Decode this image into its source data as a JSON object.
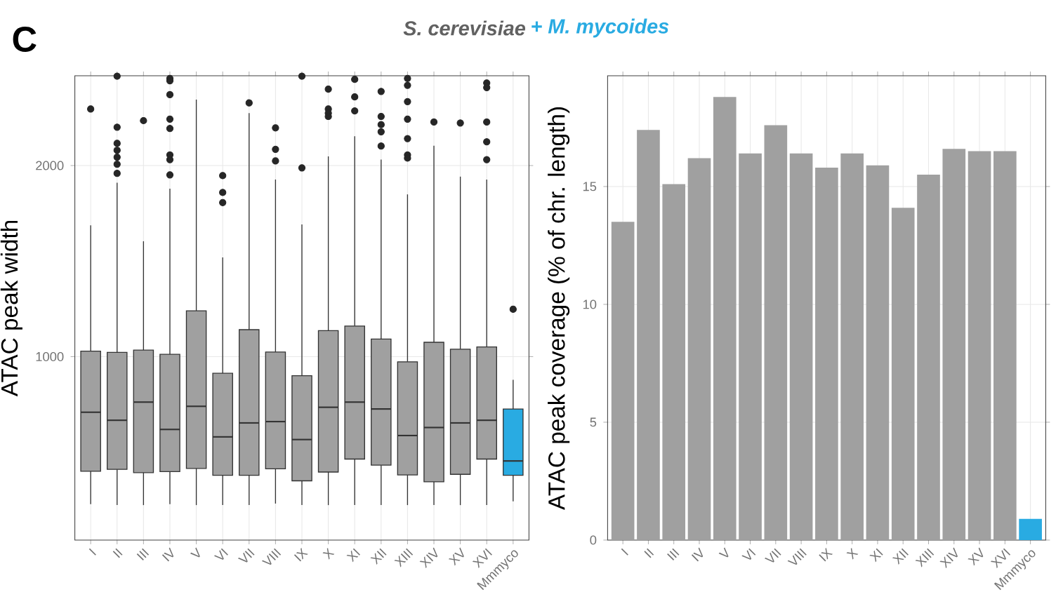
{
  "chart_data": [
    {
      "type": "box",
      "title": "S. cerevisiae",
      "ylabel": "ATAC peak width",
      "annotations": [
        "C"
      ],
      "categories": [
        "I",
        "II",
        "III",
        "IV",
        "V",
        "VI",
        "VII",
        "VIII",
        "IX",
        "X",
        "XI",
        "XII",
        "XIII",
        "XIV",
        "XV",
        "XVI",
        "Mmmyco"
      ],
      "colors": [
        "#a0a0a0",
        "#a0a0a0",
        "#a0a0a0",
        "#a0a0a0",
        "#a0a0a0",
        "#a0a0a0",
        "#a0a0a0",
        "#a0a0a0",
        "#a0a0a0",
        "#a0a0a0",
        "#a0a0a0",
        "#a0a0a0",
        "#a0a0a0",
        "#a0a0a0",
        "#a0a0a0",
        "#a0a0a0",
        "#29abe2"
      ],
      "boxes": [
        {
          "low": 228,
          "q1": 400,
          "median": 709,
          "q3": 1029,
          "high": 1687,
          "outliers": [
            2296
          ]
        },
        {
          "low": 223,
          "q1": 410,
          "median": 667,
          "q3": 1022,
          "high": 1910,
          "outliers": [
            2468,
            2201,
            2116,
            2080,
            2044,
            2007,
            1959
          ]
        },
        {
          "low": 223,
          "q1": 393,
          "median": 762,
          "q3": 1034,
          "high": 1604,
          "outliers": [
            2235
          ]
        },
        {
          "low": 228,
          "q1": 398,
          "median": 619,
          "q3": 1012,
          "high": 1879,
          "outliers": [
            2456,
            2444,
            2371,
            2243,
            2194,
            2056,
            2031,
            1951
          ]
        },
        {
          "low": 223,
          "q1": 415,
          "median": 740,
          "q3": 1240,
          "high": 2345
        },
        {
          "low": 223,
          "q1": 379,
          "median": 580,
          "q3": 913,
          "high": 1519,
          "outliers": [
            1947,
            1859,
            1806
          ]
        },
        {
          "low": 223,
          "q1": 379,
          "median": 653,
          "q3": 1141,
          "high": 2274,
          "outliers": [
            2328
          ]
        },
        {
          "low": 231,
          "q1": 413,
          "median": 660,
          "q3": 1024,
          "high": 1927,
          "outliers": [
            2197,
            2085,
            2024
          ]
        },
        {
          "low": 223,
          "q1": 350,
          "median": 566,
          "q3": 900,
          "high": 1692,
          "outliers": [
            2468,
            1988
          ]
        },
        {
          "low": 223,
          "q1": 396,
          "median": 735,
          "q3": 1136,
          "high": 2048,
          "outliers": [
            2400,
            2296,
            2274,
            2257
          ]
        },
        {
          "low": 223,
          "q1": 464,
          "median": 762,
          "q3": 1160,
          "high": 2153,
          "outliers": [
            2451,
            2359,
            2286
          ]
        },
        {
          "low": 223,
          "q1": 432,
          "median": 726,
          "q3": 1092,
          "high": 2031,
          "outliers": [
            2388,
            2257,
            2214,
            2177,
            2102
          ]
        },
        {
          "low": 223,
          "q1": 381,
          "median": 587,
          "q3": 973,
          "high": 1849,
          "outliers": [
            2456,
            2420,
            2335,
            2243,
            2141,
            2056,
            2039
          ]
        },
        {
          "low": 223,
          "q1": 345,
          "median": 629,
          "q3": 1075,
          "high": 2104,
          "outliers": [
            2228
          ]
        },
        {
          "low": 223,
          "q1": 384,
          "median": 653,
          "q3": 1039,
          "high": 1942,
          "outliers": [
            2223
          ]
        },
        {
          "low": 223,
          "q1": 464,
          "median": 667,
          "q3": 1051,
          "high": 1927,
          "outliers": [
            2432,
            2408,
            2228,
            2124,
            2031
          ]
        },
        {
          "low": 243,
          "q1": 379,
          "median": 454,
          "q3": 726,
          "high": 879,
          "outliers": [
            1248
          ]
        }
      ],
      "ylim": [
        40,
        2470
      ],
      "yticks": [
        1000,
        2000
      ],
      "grid": true
    },
    {
      "type": "bar",
      "title": "+ M. mycoides",
      "ylabel": "ATAC peak coverage (% of chr. length)",
      "categories": [
        "I",
        "II",
        "III",
        "IV",
        "V",
        "VI",
        "VII",
        "VIII",
        "IX",
        "X",
        "XI",
        "XII",
        "XIII",
        "XIV",
        "XV",
        "XVI",
        "Mmmyco"
      ],
      "values": [
        13.5,
        17.4,
        15.1,
        16.2,
        18.8,
        16.4,
        17.6,
        16.4,
        15.8,
        16.4,
        15.9,
        14.1,
        15.5,
        16.6,
        16.5,
        16.5,
        0.9
      ],
      "colors": [
        "#a0a0a0",
        "#a0a0a0",
        "#a0a0a0",
        "#a0a0a0",
        "#a0a0a0",
        "#a0a0a0",
        "#a0a0a0",
        "#a0a0a0",
        "#a0a0a0",
        "#a0a0a0",
        "#a0a0a0",
        "#a0a0a0",
        "#a0a0a0",
        "#a0a0a0",
        "#a0a0a0",
        "#a0a0a0",
        "#29abe2"
      ],
      "ylim": [
        0,
        19.7
      ],
      "yticks": [
        0,
        5,
        10,
        15
      ],
      "grid": true
    }
  ]
}
